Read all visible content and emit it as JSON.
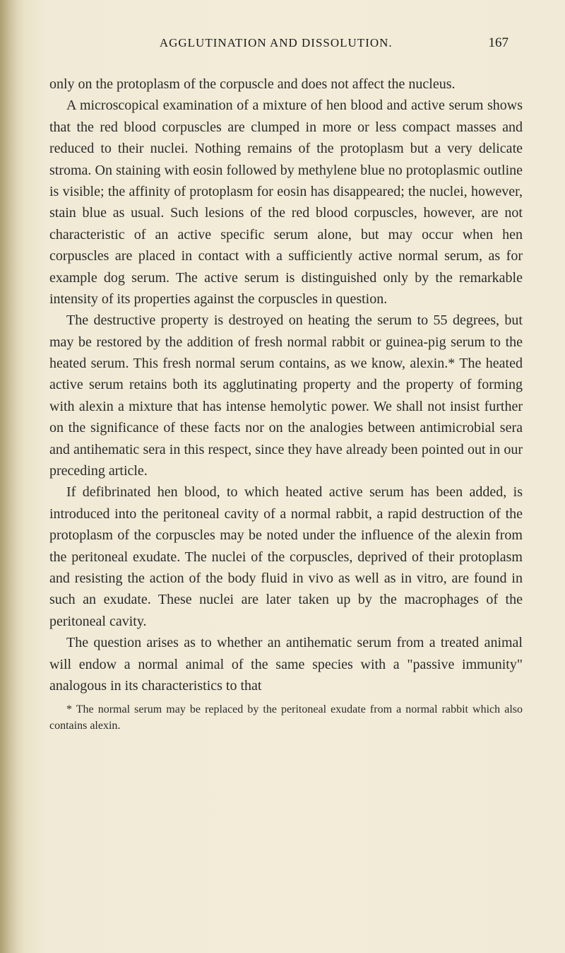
{
  "header": {
    "title": "AGGLUTINATION AND DISSOLUTION.",
    "pageNumber": "167"
  },
  "paragraphs": {
    "p1": "only on the protoplasm of the corpuscle and does not affect the nucleus.",
    "p2": "A microscopical examination of a mixture of hen blood and active serum shows that the red blood corpuscles are clumped in more or less compact masses and reduced to their nuclei. Nothing remains of the protoplasm but a very delicate stroma. On staining with eosin followed by methylene blue no protoplasmic outline is visible; the affinity of protoplasm for eosin has disappeared; the nuclei, however, stain blue as usual. Such lesions of the red blood corpuscles, however, are not characteristic of an active specific serum alone, but may occur when hen corpuscles are placed in contact with a sufficiently active normal serum, as for example dog serum. The active serum is distinguished only by the remarkable intensity of its properties against the corpuscles in question.",
    "p3": "The destructive property is destroyed on heating the serum to 55 degrees, but may be restored by the addition of fresh normal rabbit or guinea-pig serum to the heated serum. This fresh normal serum contains, as we know, alexin.* The heated active serum retains both its agglutinating property and the property of forming with alexin a mixture that has intense hemolytic power. We shall not insist further on the significance of these facts nor on the analogies between antimicrobial sera and antihematic sera in this respect, since they have already been pointed out in our preceding article.",
    "p4": "If defibrinated hen blood, to which heated active serum has been added, is introduced into the peritoneal cavity of a normal rabbit, a rapid destruction of the protoplasm of the corpuscles may be noted under the influence of the alexin from the peritoneal exudate. The nuclei of the corpuscles, deprived of their protoplasm and resisting the action of the body fluid in vivo as well as in vitro, are found in such an exudate. These nuclei are later taken up by the macrophages of the peritoneal cavity.",
    "p5": "The question arises as to whether an antihematic serum from a treated animal will endow a normal animal of the same species with a \"passive immunity\" analogous in its characteristics to that"
  },
  "footnote": "* The normal serum may be replaced by the peritoneal exudate from a normal rabbit which also contains alexin.",
  "styling": {
    "backgroundColor": "#f0ead6",
    "textColor": "#1a1a1a",
    "bodyFontSize": 20,
    "headerFontSize": 17,
    "pageNumberFontSize": 19,
    "footnoteFontSize": 16,
    "lineHeight": 1.52,
    "fontFamily": "Times New Roman"
  }
}
